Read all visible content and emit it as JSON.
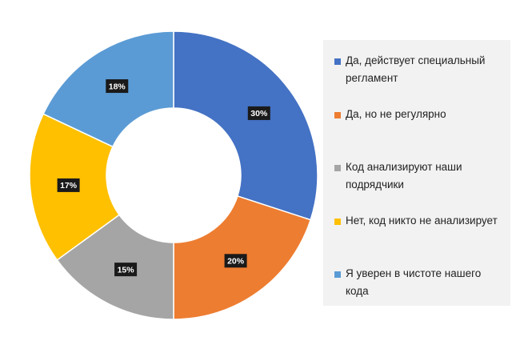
{
  "chart_data": {
    "type": "pie",
    "donut": true,
    "title": "",
    "legend_position": "right",
    "slices": [
      {
        "label": "Да, действует специальный регламент",
        "value": 30,
        "display": "30%",
        "color": "#4472C4"
      },
      {
        "label": "Да, но не регулярно",
        "value": 20,
        "display": "20%",
        "color": "#ED7D31"
      },
      {
        "label": "Код анализируют наши подрядчики",
        "value": 15,
        "display": "15%",
        "color": "#A5A5A5"
      },
      {
        "label": "Нет, код никто не анализирует",
        "value": 17,
        "display": "17%",
        "color": "#FFC000"
      },
      {
        "label": "Я уверен в чистоте нашего кода",
        "value": 18,
        "display": "18%",
        "color": "#5B9BD5"
      }
    ]
  }
}
